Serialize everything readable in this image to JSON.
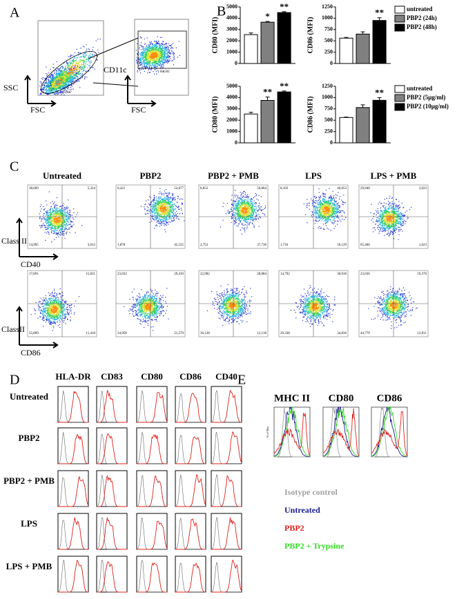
{
  "panel_a": {
    "label": "A",
    "plot1": {
      "y_label": "SSC",
      "x_label": "FSC",
      "gate_count": "53,847"
    },
    "plot2": {
      "y_label": "CD11c",
      "x_label": "FSC",
      "gate_count": "84,501"
    }
  },
  "panel_b": {
    "label": "B"
  },
  "chart_data": [
    {
      "type": "bar",
      "y_label": "CD80 (MFI)",
      "categories": [
        "untreated",
        "PBP2 (24h)",
        "PBP2 (48h)"
      ],
      "colors": [
        "#ffffff",
        "#808080",
        "#000000"
      ],
      "values": [
        2550,
        3650,
        4500
      ],
      "errors": [
        150,
        60,
        80
      ],
      "significance": [
        null,
        "*",
        "**"
      ],
      "ylim": [
        0,
        5000
      ],
      "yticks": [
        0,
        1000,
        2000,
        3000,
        4000,
        5000
      ]
    },
    {
      "type": "bar",
      "y_label": "CD86 (MFI)",
      "categories": [
        "untreated",
        "PBP2 (24h)",
        "PBP2 (48h)"
      ],
      "colors": [
        "#ffffff",
        "#808080",
        "#000000"
      ],
      "values": [
        560,
        650,
        950
      ],
      "errors": [
        15,
        50,
        60
      ],
      "significance": [
        null,
        null,
        "**"
      ],
      "ylim": [
        0,
        1250
      ],
      "yticks": [
        0,
        250,
        500,
        750,
        1000,
        1250
      ]
    },
    {
      "type": "bar",
      "y_label": "CD80 (MFI)",
      "categories": [
        "untreated",
        "PBP2 (5µg/ml)",
        "PBP2 (10µg/ml)"
      ],
      "colors": [
        "#ffffff",
        "#808080",
        "#000000"
      ],
      "values": [
        2550,
        3750,
        4500
      ],
      "errors": [
        150,
        300,
        80
      ],
      "significance": [
        null,
        "**",
        "**"
      ],
      "ylim": [
        0,
        5000
      ],
      "yticks": [
        0,
        1000,
        2000,
        3000,
        4000,
        5000
      ]
    },
    {
      "type": "bar",
      "y_label": "CD86 (MFI)",
      "categories": [
        "untreated",
        "PBP2 (5µg/ml)",
        "PBP2 (10µg/ml)"
      ],
      "colors": [
        "#ffffff",
        "#808080",
        "#000000"
      ],
      "values": [
        560,
        780,
        940
      ],
      "errors": [
        10,
        60,
        60
      ],
      "significance": [
        null,
        null,
        "**"
      ],
      "ylim": [
        0,
        1250
      ],
      "yticks": [
        0,
        250,
        500,
        750,
        1000,
        1250
      ]
    }
  ],
  "panel_c": {
    "label": "C",
    "columns": [
      "Untreated",
      "PBP2",
      "PBP2 + PMB",
      "LPS",
      "LPS + PMB"
    ],
    "rows": [
      {
        "y_label": "Class II",
        "x_label": "CD40",
        "quadrants": [
          [
            "38,669",
            "5,324",
            "54,995",
            "3,012"
          ],
          [
            "0,421",
            "52,877",
            "1,878",
            "45,525"
          ],
          [
            "8,852",
            "50,864",
            "2,753",
            "37,730"
          ],
          [
            "8,102",
            "46,053",
            "1,716",
            "50,129"
          ],
          [
            "29,940",
            "3,023",
            "65,406",
            "1,623"
          ]
        ]
      },
      {
        "y_label": "ClassII",
        "x_label": "CD86",
        "quadrants": [
          [
            "17,891",
            "15,831",
            "55,869",
            "11,410"
          ],
          [
            "23,032",
            "29,410",
            "34,958",
            "21,579"
          ],
          [
            "22,982",
            "28,884",
            "36,128",
            "12,118"
          ],
          [
            "14,792",
            "30,018",
            "20,338",
            "34,836"
          ],
          [
            "23,036",
            "19,370",
            "44,779",
            "12,811"
          ]
        ]
      }
    ]
  },
  "panel_d": {
    "label": "D",
    "columns": [
      "HLA-DR",
      "CD83",
      "CD80",
      "CD86",
      "CD40"
    ],
    "rows": [
      "Untreated",
      "PBP2",
      "PBP2 + PMB",
      "LPS",
      "LPS + PMB"
    ]
  },
  "panel_e": {
    "label": "E",
    "columns": [
      "MHC II",
      "CD80",
      "CD86"
    ],
    "y_label": "% of Max",
    "legend": [
      {
        "name": "Isotype control",
        "color": "#a0a0a0"
      },
      {
        "name": "Untreated",
        "color": "#1a1a8c"
      },
      {
        "name": "PBP2",
        "color": "#e0201a"
      },
      {
        "name": "PBP2 + Trypsine",
        "color": "#33dd22"
      }
    ]
  }
}
